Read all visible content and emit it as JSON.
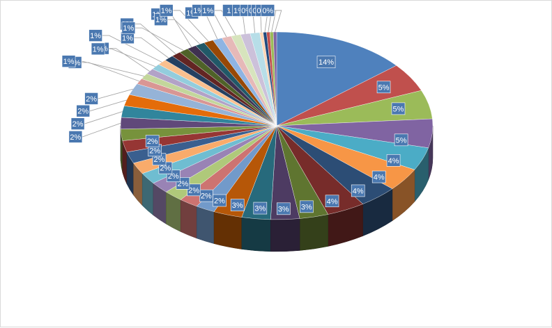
{
  "chart_data": {
    "type": "pie",
    "style": "3d-exploded-tilt",
    "label_format": "percent",
    "title": "",
    "legend": "none",
    "values": [
      14,
      5,
      5,
      5,
      4,
      4,
      4,
      4,
      3,
      3,
      3,
      3,
      2,
      2,
      2,
      2,
      2,
      2,
      2,
      2,
      2,
      2,
      2,
      2,
      2,
      1,
      1,
      1,
      1,
      1,
      1,
      1,
      1,
      1,
      1,
      1,
      1,
      1,
      1,
      1,
      1,
      0,
      0,
      0,
      0,
      0
    ],
    "labels": [
      "14%",
      "5%",
      "5%",
      "5%",
      "4%",
      "4%",
      "4%",
      "4%",
      "3%",
      "3%",
      "3%",
      "3%",
      "2%",
      "2%",
      "2%",
      "2%",
      "2%",
      "2%",
      "2%",
      "2%",
      "2%",
      "2%",
      "2%",
      "2%",
      "2%",
      "1%",
      "1%",
      "1%",
      "1%",
      "1%",
      "1%",
      "1%",
      "1%",
      "1%",
      "1%",
      "1%",
      "1%",
      "1%",
      "1%",
      "1",
      "1%",
      "0%",
      "0%",
      "0%",
      "0%",
      "0%"
    ],
    "colors": [
      "#4f81bd",
      "#c0504d",
      "#9bbb59",
      "#8064a2",
      "#4bacc6",
      "#f79646",
      "#2c4d75",
      "#772c2a",
      "#5f7530",
      "#4d3b62",
      "#276a7c",
      "#b65708",
      "#729aca",
      "#cd7371",
      "#afc97a",
      "#9983b5",
      "#6fbdd1",
      "#f9ab6b",
      "#3a5f8f",
      "#963634",
      "#77923c",
      "#60497a",
      "#31859c",
      "#e46c0a",
      "#95b3d7",
      "#d99694",
      "#c3d69b",
      "#b2a2c7",
      "#93cddd",
      "#fac08f",
      "#254061",
      "#632523",
      "#4f6228",
      "#3f3151",
      "#215968",
      "#974806",
      "#8eb4e3",
      "#e6b9b8",
      "#d7e4bd",
      "#ccc1da",
      "#b7dee8",
      "#fcd5b5",
      "#1f497d",
      "#c0504d",
      "#9bbb59",
      "#8064a2"
    ]
  }
}
